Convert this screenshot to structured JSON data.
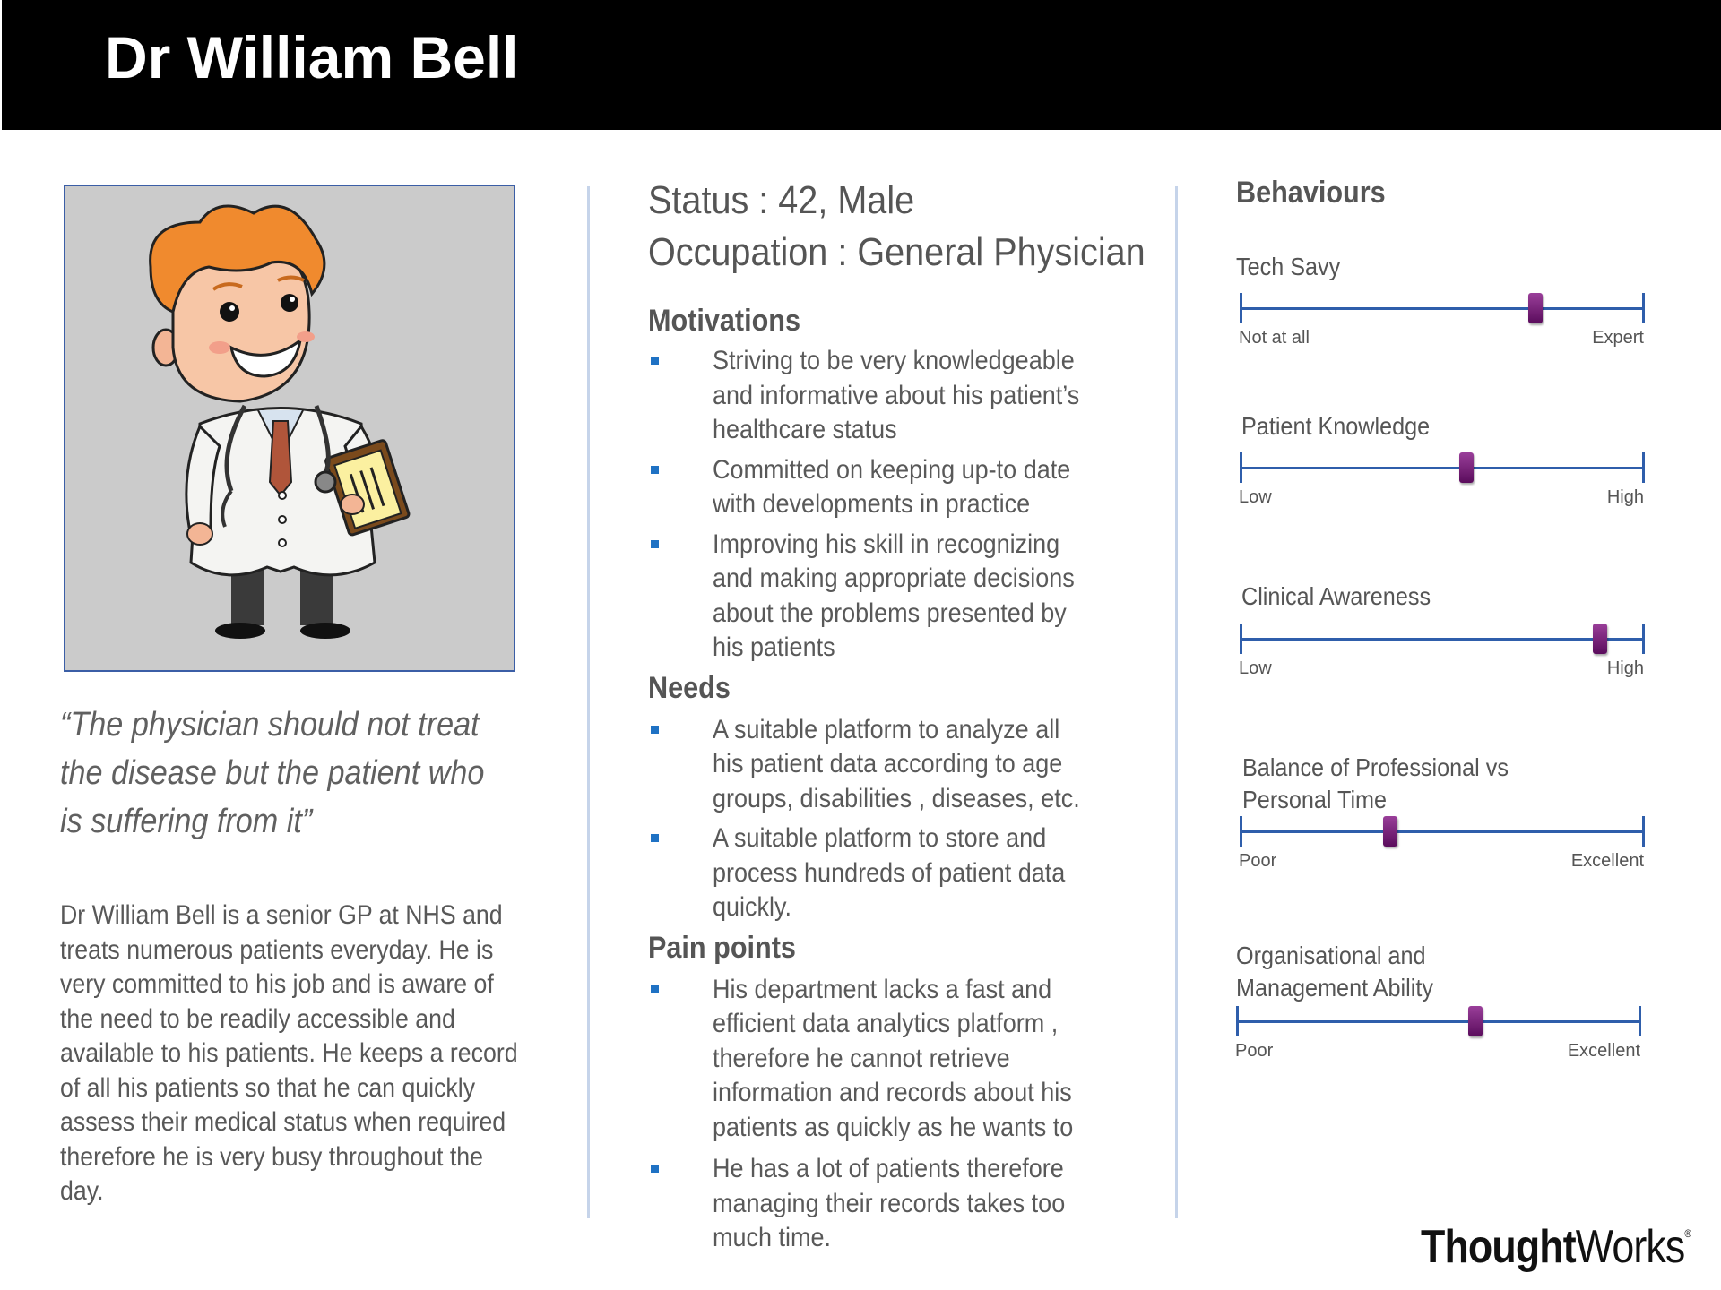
{
  "persona": {
    "name": "Dr William Bell",
    "quote": "“The physician should not treat the disease but the patient who is suffering from it”",
    "bio": "Dr William Bell is a senior GP at NHS and treats numerous patients everyday. He is very committed to his job and is aware of the need to be readily accessible and available to his patients. He keeps a record of all his patients so that he can quickly assess their medical status when required therefore he is very busy throughout the day."
  },
  "profile": {
    "status": "Status : 42, Male",
    "occupation": "Occupation : General Physician"
  },
  "sections": {
    "motivations": {
      "title": "Motivations",
      "items": [
        "Striving to be very knowledgeable and informative about his patient’s healthcare status",
        "Committed on keeping up-to date with developments in practice",
        "Improving his skill in recognizing and making appropriate decisions about the problems presented by his patients"
      ]
    },
    "needs": {
      "title": "Needs",
      "items": [
        "A suitable platform to analyze all his patient data according to age groups, disabilities , diseases, etc.",
        "A suitable platform to store and process hundreds of patient data quickly."
      ]
    },
    "pain_points": {
      "title": "Pain points",
      "items": [
        "His department lacks a fast and efficient data analytics platform , therefore he cannot retrieve information and records about his patients as quickly as he wants to",
        "He has a lot of patients therefore managing their records takes too much time."
      ]
    }
  },
  "behaviours": {
    "title": "Behaviours",
    "sliders": [
      {
        "label": "Tech Savy",
        "min_label": "Not at all",
        "max_label": "Expert",
        "value": 0.73
      },
      {
        "label": "Patient Knowledge",
        "min_label": "Low",
        "max_label": "High",
        "value": 0.56
      },
      {
        "label": "Clinical Awareness",
        "min_label": "Low",
        "max_label": "High",
        "value": 0.89
      },
      {
        "label": "Balance of Professional vs Personal Time",
        "min_label": "Poor",
        "max_label": "Excellent",
        "value": 0.37
      },
      {
        "label": "Organisational and Management Ability",
        "min_label": "Poor",
        "max_label": "Excellent",
        "value": 0.59
      }
    ]
  },
  "brand": {
    "logo_bold": "Thought",
    "logo_light": "Works",
    "logo_mark": "®"
  },
  "colors": {
    "header_bg": "#000000",
    "slider_track": "#2f5eab",
    "slider_knob": "#6a1b6c",
    "bullet": "#1f72c4"
  }
}
